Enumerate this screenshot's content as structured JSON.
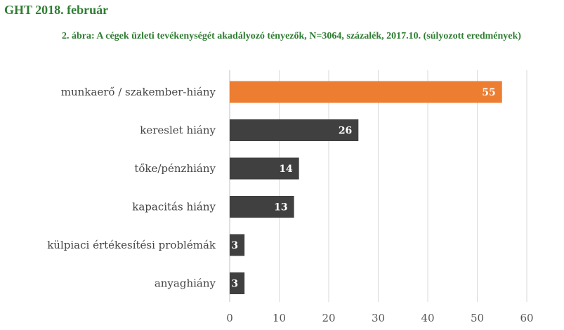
{
  "header": {
    "title": "GHT 2018. február"
  },
  "chart_data": {
    "type": "bar",
    "orientation": "horizontal",
    "title": "2. ábra: A cégek üzleti tevékenységét akadályozó tényezők, N=3064, százalék, 2017.10. (súlyozott eredmények)",
    "categories": [
      "munkaerő / szakember-hiány",
      "kereslet hiány",
      "tőke/pénzhiány",
      "kapacitás hiány",
      "külpiaci értékesítési problémák",
      "anyaghiány"
    ],
    "values": [
      55,
      26,
      14,
      13,
      3,
      3
    ],
    "data_labels": [
      "55",
      "26",
      "14",
      "13",
      "3",
      "3"
    ],
    "xlim": [
      0,
      60
    ],
    "xticks": [
      0,
      10,
      20,
      30,
      40,
      50,
      60
    ],
    "xtick_labels": [
      "0",
      "10",
      "20",
      "30",
      "40",
      "50",
      "60"
    ],
    "bar_colors": [
      "#ed7d31",
      "#404040",
      "#404040",
      "#404040",
      "#404040",
      "#404040"
    ],
    "grid": true,
    "gridline_color": "#d9d9d9",
    "xlabel": "",
    "ylabel": ""
  }
}
